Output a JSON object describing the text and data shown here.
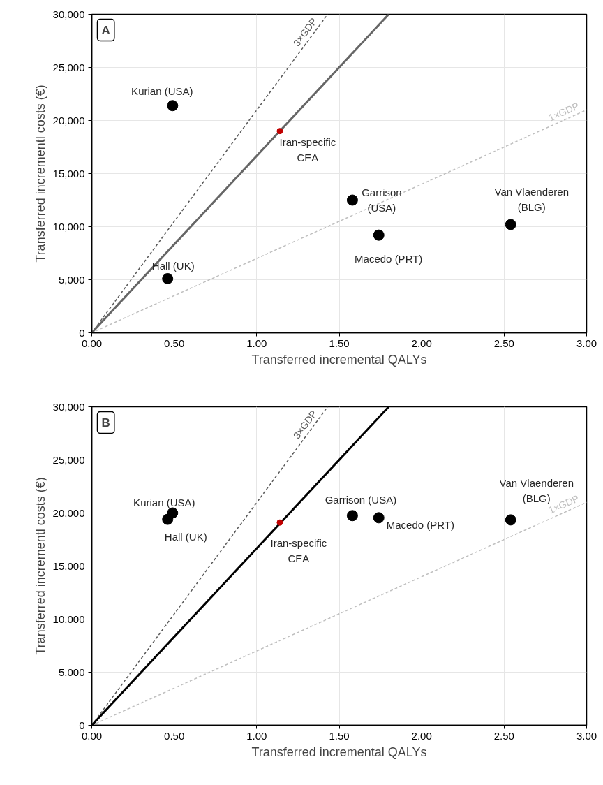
{
  "chart_data": [
    {
      "type": "scatter",
      "xlabel": "Transferred incremental QALYs",
      "ylabel": "Transferred incrementl costs (€)",
      "xlim": [
        0,
        3
      ],
      "ylim": [
        0,
        30000
      ],
      "xticks": [
        {
          "value": 0,
          "label": "0.00"
        },
        {
          "value": 0.5,
          "label": "0.50"
        },
        {
          "value": 1,
          "label": "1.00"
        },
        {
          "value": 1.5,
          "label": "1.50"
        },
        {
          "value": 2,
          "label": "2.00"
        },
        {
          "value": 2.5,
          "label": "2.50"
        },
        {
          "value": 3,
          "label": "3.00"
        }
      ],
      "yticks": [
        0,
        {
          "value": 5000,
          "label": "5,000"
        },
        {
          "value": 10000,
          "label": "10,000"
        },
        {
          "value": 15000,
          "label": "15,000"
        },
        {
          "value": 20000,
          "label": "20,000"
        },
        {
          "value": 25000,
          "label": "25,000"
        },
        {
          "value": 30000,
          "label": "30,000"
        }
      ],
      "grid": true,
      "series": [
        {
          "type": "line",
          "name": "3×GDP",
          "color": "#595959",
          "line_style": "dashed",
          "x": [
            0,
            1.43
          ],
          "values": [
            0,
            30000
          ]
        },
        {
          "type": "line",
          "name": "1×GDP",
          "color": "#bfbfbf",
          "line_style": "dashed",
          "x": [
            0,
            3
          ],
          "values": [
            0,
            21000
          ]
        },
        {
          "type": "line",
          "color": "#666666",
          "line_style": "solid",
          "x": [
            0,
            1.8
          ],
          "values": [
            0,
            30000
          ]
        },
        {
          "marker": "circle",
          "color": "#000000",
          "x": [
            0.49,
            0.46,
            1.58,
            1.74,
            2.54
          ],
          "values": [
            21400,
            5100,
            12500,
            9200,
            10200
          ]
        },
        {
          "marker": "circle",
          "color": "#c00000",
          "x": [
            1.14
          ],
          "values": [
            19000
          ]
        }
      ],
      "annotations": [
        "A",
        {
          "text": "Kurian (USA)",
          "x": 0.49,
          "y": 21400
        },
        {
          "text": "Hall (UK)",
          "x": 0.46,
          "y": 5100
        },
        {
          "text": "Garrison (USA)",
          "x": 1.58,
          "y": 12500
        },
        {
          "text": "Macedo (PRT)",
          "x": 1.74,
          "y": 9200
        },
        {
          "text": "Van Vlaenderen (BLG)",
          "x": 2.54,
          "y": 10200
        },
        {
          "text": "Iran-specific CEA",
          "x": 1.14,
          "y": 19000
        }
      ]
    },
    {
      "type": "scatter",
      "xlabel": "Transferred incremental QALYs",
      "ylabel": "Transferred incrementl costs (€)",
      "xlim": [
        0,
        3
      ],
      "ylim": [
        0,
        30000
      ],
      "xticks": [
        {
          "value": 0,
          "label": "0.00"
        },
        {
          "value": 0.5,
          "label": "0.50"
        },
        {
          "value": 1,
          "label": "1.00"
        },
        {
          "value": 1.5,
          "label": "1.50"
        },
        {
          "value": 2,
          "label": "2.00"
        },
        {
          "value": 2.5,
          "label": "2.50"
        },
        {
          "value": 3,
          "label": "3.00"
        }
      ],
      "yticks": [
        0,
        {
          "value": 5000,
          "label": "5,000"
        },
        {
          "value": 10000,
          "label": "10,000"
        },
        {
          "value": 15000,
          "label": "15,000"
        },
        {
          "value": 20000,
          "label": "20,000"
        },
        {
          "value": 25000,
          "label": "25,000"
        },
        {
          "value": 30000,
          "label": "30,000"
        }
      ],
      "grid": true,
      "series": [
        {
          "type": "line",
          "name": "3×GDP",
          "color": "#595959",
          "line_style": "dashed",
          "x": [
            0,
            1.43
          ],
          "values": [
            0,
            30000
          ]
        },
        {
          "type": "line",
          "name": "1×GDP",
          "color": "#bfbfbf",
          "line_style": "dashed",
          "x": [
            0,
            3
          ],
          "values": [
            0,
            21000
          ]
        },
        {
          "type": "line",
          "color": "#000000",
          "line_style": "solid",
          "x": [
            0,
            1.8
          ],
          "values": [
            0,
            30000
          ]
        },
        {
          "marker": "circle",
          "color": "#000000",
          "x": [
            0.49,
            0.46,
            1.58,
            1.74,
            2.54
          ],
          "values": [
            20000,
            19400,
            19750,
            19550,
            19350
          ]
        },
        {
          "marker": "circle",
          "color": "#c00000",
          "x": [
            1.14
          ],
          "values": [
            19100
          ]
        }
      ],
      "annotations": [
        "B",
        {
          "text": "Kurian (USA)",
          "x": 0.49,
          "y": 20000
        },
        {
          "text": "Hall (UK)",
          "x": 0.46,
          "y": 19400
        },
        {
          "text": "Garrison (USA)",
          "x": 1.58,
          "y": 19750
        },
        {
          "text": "Macedo (PRT)",
          "x": 1.74,
          "y": 19550
        },
        {
          "text": "Van Vlaenderen (BLG)",
          "x": 2.54,
          "y": 19350
        },
        {
          "text": "Iran-specific CEA",
          "x": 1.14,
          "y": 19100
        }
      ]
    }
  ]
}
